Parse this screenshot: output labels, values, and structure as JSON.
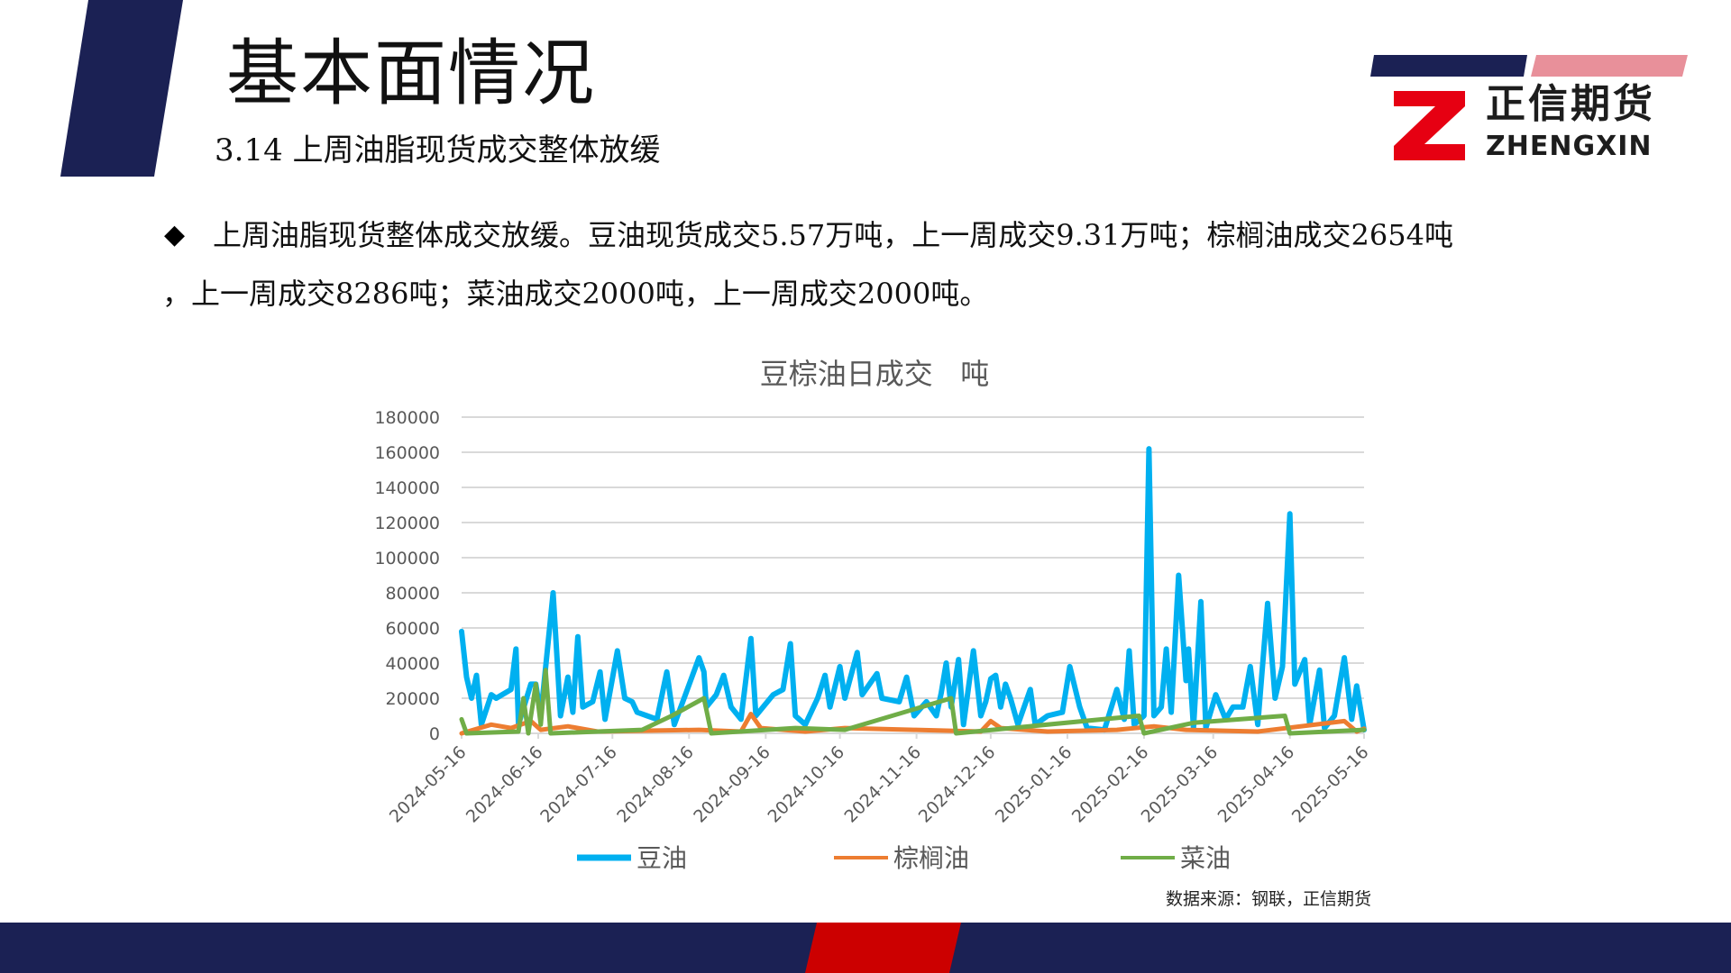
{
  "header": {
    "title": "基本面情况",
    "subtitle": "3.14 上周油脂现货成交整体放缓"
  },
  "logo": {
    "name_cn": "正信期货",
    "name_en": "ZHENGXIN"
  },
  "body": {
    "bullet_icon": "diamond-bullet",
    "line1": "上周油脂现货整体成交放缓。豆油现货成交5.57万吨，上一周成交9.31万吨；棕榈油成交2654吨",
    "line2": "，上一周成交8286吨；菜油成交2000吨，上一周成交2000吨。"
  },
  "source": "数据来源：钢联，正信期货",
  "colors": {
    "navy": "#1b2154",
    "red": "#cc0000",
    "pink": "#e8909a",
    "soy": "#00b0f0",
    "palm": "#ed7d31",
    "rapeseed": "#70ad47"
  },
  "chart_data": {
    "type": "line",
    "title": "豆棕油日成交   吨",
    "ylim": [
      0,
      180000
    ],
    "yticks": [
      "0",
      "20000",
      "40000",
      "60000",
      "80000",
      "100000",
      "120000",
      "140000",
      "160000",
      "180000"
    ],
    "xlim": [
      "2024-05-16",
      "2025-05-16"
    ],
    "xticks": [
      "2024-05-16",
      "2024-06-16",
      "2024-07-16",
      "2024-08-16",
      "2024-09-16",
      "2024-10-16",
      "2024-11-16",
      "2024-12-16",
      "2025-01-16",
      "2025-02-16",
      "2025-03-16",
      "2025-04-16",
      "2025-05-16"
    ],
    "grid": true,
    "legend_position": "bottom",
    "series": [
      {
        "name": "豆油",
        "color": "#00b0f0",
        "points": [
          [
            "2024-05-16",
            58000
          ],
          [
            "2024-05-18",
            32000
          ],
          [
            "2024-05-20",
            20000
          ],
          [
            "2024-05-22",
            33000
          ],
          [
            "2024-05-24",
            5000
          ],
          [
            "2024-05-28",
            22000
          ],
          [
            "2024-05-30",
            20000
          ],
          [
            "2024-06-05",
            25000
          ],
          [
            "2024-06-07",
            48000
          ],
          [
            "2024-06-08",
            5000
          ],
          [
            "2024-06-13",
            28000
          ],
          [
            "2024-06-15",
            28000
          ],
          [
            "2024-06-17",
            10000
          ],
          [
            "2024-06-22",
            80000
          ],
          [
            "2024-06-25",
            10000
          ],
          [
            "2024-06-28",
            32000
          ],
          [
            "2024-06-30",
            12000
          ],
          [
            "2024-07-02",
            55000
          ],
          [
            "2024-07-04",
            15000
          ],
          [
            "2024-07-08",
            18000
          ],
          [
            "2024-07-11",
            35000
          ],
          [
            "2024-07-13",
            8000
          ],
          [
            "2024-07-18",
            47000
          ],
          [
            "2024-07-21",
            20000
          ],
          [
            "2024-07-24",
            18000
          ],
          [
            "2024-07-26",
            12000
          ],
          [
            "2024-07-30",
            10000
          ],
          [
            "2024-08-03",
            8000
          ],
          [
            "2024-08-07",
            35000
          ],
          [
            "2024-08-10",
            5000
          ],
          [
            "2024-08-14",
            20000
          ],
          [
            "2024-08-20",
            43000
          ],
          [
            "2024-08-22",
            35000
          ],
          [
            "2024-08-23",
            15000
          ],
          [
            "2024-08-27",
            22000
          ],
          [
            "2024-08-30",
            33000
          ],
          [
            "2024-09-02",
            15000
          ],
          [
            "2024-09-06",
            8000
          ],
          [
            "2024-09-10",
            54000
          ],
          [
            "2024-09-12",
            10000
          ],
          [
            "2024-09-19",
            22000
          ],
          [
            "2024-09-23",
            25000
          ],
          [
            "2024-09-26",
            51000
          ],
          [
            "2024-09-28",
            10000
          ],
          [
            "2024-10-02",
            5000
          ],
          [
            "2024-10-07",
            20000
          ],
          [
            "2024-10-10",
            33000
          ],
          [
            "2024-10-12",
            15000
          ],
          [
            "2024-10-16",
            38000
          ],
          [
            "2024-10-18",
            20000
          ],
          [
            "2024-10-23",
            46000
          ],
          [
            "2024-10-25",
            22000
          ],
          [
            "2024-10-28",
            28000
          ],
          [
            "2024-10-31",
            34000
          ],
          [
            "2024-11-02",
            20000
          ],
          [
            "2024-11-09",
            18000
          ],
          [
            "2024-11-12",
            32000
          ],
          [
            "2024-11-15",
            10000
          ],
          [
            "2024-11-20",
            18000
          ],
          [
            "2024-11-24",
            10000
          ],
          [
            "2024-11-26",
            23000
          ],
          [
            "2024-11-28",
            40000
          ],
          [
            "2024-11-30",
            15000
          ],
          [
            "2024-12-03",
            42000
          ],
          [
            "2024-12-05",
            5000
          ],
          [
            "2024-12-09",
            47000
          ],
          [
            "2024-12-12",
            10000
          ],
          [
            "2024-12-14",
            18000
          ],
          [
            "2024-12-16",
            31000
          ],
          [
            "2024-12-18",
            33000
          ],
          [
            "2024-12-20",
            15000
          ],
          [
            "2024-12-22",
            28000
          ],
          [
            "2024-12-24",
            20000
          ],
          [
            "2024-12-27",
            5000
          ],
          [
            "2025-01-01",
            25000
          ],
          [
            "2025-01-03",
            5000
          ],
          [
            "2025-01-08",
            10000
          ],
          [
            "2025-01-14",
            12000
          ],
          [
            "2025-01-17",
            38000
          ],
          [
            "2025-01-21",
            15000
          ],
          [
            "2025-01-24",
            3000
          ],
          [
            "2025-01-31",
            2000
          ],
          [
            "2025-02-05",
            25000
          ],
          [
            "2025-02-08",
            8000
          ],
          [
            "2025-02-10",
            47000
          ],
          [
            "2025-02-12",
            5000
          ],
          [
            "2025-02-16",
            10000
          ],
          [
            "2025-02-18",
            162000
          ],
          [
            "2025-02-20",
            10000
          ],
          [
            "2025-02-23",
            15000
          ],
          [
            "2025-02-25",
            48000
          ],
          [
            "2025-02-27",
            12000
          ],
          [
            "2025-03-02",
            90000
          ],
          [
            "2025-03-05",
            30000
          ],
          [
            "2025-03-06",
            48000
          ],
          [
            "2025-03-08",
            3000
          ],
          [
            "2025-03-11",
            75000
          ],
          [
            "2025-03-13",
            3000
          ],
          [
            "2025-03-17",
            22000
          ],
          [
            "2025-03-21",
            8000
          ],
          [
            "2025-03-24",
            15000
          ],
          [
            "2025-03-28",
            15000
          ],
          [
            "2025-03-31",
            38000
          ],
          [
            "2025-04-03",
            5000
          ],
          [
            "2025-04-07",
            74000
          ],
          [
            "2025-04-10",
            20000
          ],
          [
            "2025-04-13",
            38000
          ],
          [
            "2025-04-16",
            125000
          ],
          [
            "2025-04-18",
            28000
          ],
          [
            "2025-04-22",
            42000
          ],
          [
            "2025-04-24",
            5000
          ],
          [
            "2025-04-28",
            36000
          ],
          [
            "2025-04-30",
            3000
          ],
          [
            "2025-05-04",
            10000
          ],
          [
            "2025-05-08",
            43000
          ],
          [
            "2025-05-11",
            8000
          ],
          [
            "2025-05-13",
            27000
          ],
          [
            "2025-05-16",
            2000
          ]
        ]
      },
      {
        "name": "棕榈油",
        "color": "#ed7d31",
        "points": [
          [
            "2024-05-16",
            0
          ],
          [
            "2024-05-28",
            5000
          ],
          [
            "2024-06-05",
            3000
          ],
          [
            "2024-06-13",
            7000
          ],
          [
            "2024-06-17",
            2000
          ],
          [
            "2024-06-28",
            4000
          ],
          [
            "2024-07-10",
            1000
          ],
          [
            "2024-08-20",
            2000
          ],
          [
            "2024-09-06",
            1000
          ],
          [
            "2024-09-10",
            11000
          ],
          [
            "2024-09-14",
            3000
          ],
          [
            "2024-10-02",
            1000
          ],
          [
            "2024-10-18",
            3000
          ],
          [
            "2024-11-15",
            2000
          ],
          [
            "2024-12-12",
            1000
          ],
          [
            "2024-12-16",
            7000
          ],
          [
            "2024-12-20",
            3000
          ],
          [
            "2025-01-08",
            1000
          ],
          [
            "2025-02-05",
            2000
          ],
          [
            "2025-02-20",
            4000
          ],
          [
            "2025-03-05",
            2000
          ],
          [
            "2025-04-03",
            1000
          ],
          [
            "2025-05-08",
            7000
          ],
          [
            "2025-05-13",
            1000
          ],
          [
            "2025-05-16",
            2654
          ]
        ]
      },
      {
        "name": "菜油",
        "color": "#70ad47",
        "points": [
          [
            "2024-05-16",
            8000
          ],
          [
            "2024-05-18",
            0
          ],
          [
            "2024-06-08",
            1000
          ],
          [
            "2024-06-10",
            20000
          ],
          [
            "2024-06-12",
            0
          ],
          [
            "2024-06-15",
            28000
          ],
          [
            "2024-06-17",
            5000
          ],
          [
            "2024-06-19",
            36000
          ],
          [
            "2024-06-21",
            0
          ],
          [
            "2024-07-28",
            2000
          ],
          [
            "2024-08-09",
            10000
          ],
          [
            "2024-08-22",
            20000
          ],
          [
            "2024-08-25",
            0
          ],
          [
            "2024-09-28",
            3000
          ],
          [
            "2024-10-18",
            2000
          ],
          [
            "2024-11-30",
            20000
          ],
          [
            "2024-12-02",
            0
          ],
          [
            "2025-02-14",
            10000
          ],
          [
            "2025-02-16",
            0
          ],
          [
            "2025-03-08",
            6000
          ],
          [
            "2025-04-14",
            10000
          ],
          [
            "2025-04-16",
            0
          ],
          [
            "2025-05-16",
            2000
          ]
        ]
      }
    ]
  }
}
